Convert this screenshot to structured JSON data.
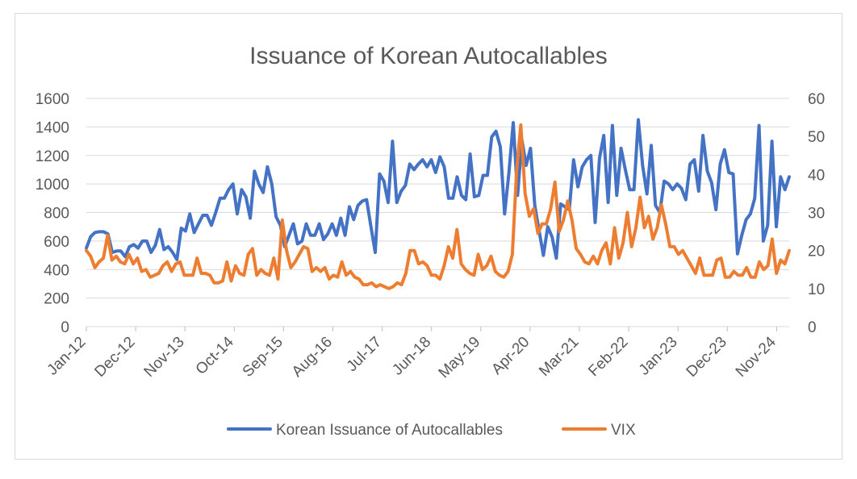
{
  "chart_data": {
    "type": "line",
    "title": "Issuance of Korean Autocallables",
    "xlabel": "",
    "ylabel_left": "",
    "ylabel_right": "",
    "x_tick_labels": [
      "Jan-12",
      "Dec-12",
      "Nov-13",
      "Oct-14",
      "Sep-15",
      "Aug-16",
      "Jul-17",
      "Jun-18",
      "May-19",
      "Apr-20",
      "Mar-21",
      "Feb-22",
      "Jan-23",
      "Dec-23",
      "Nov-24"
    ],
    "y_left": {
      "ticks": [
        "0",
        "200",
        "400",
        "600",
        "800",
        "1000",
        "1200",
        "1400",
        "1600"
      ],
      "range": [
        0,
        1600
      ]
    },
    "y_right": {
      "ticks": [
        "0",
        "10",
        "20",
        "30",
        "40",
        "50",
        "60"
      ],
      "range": [
        0,
        60
      ]
    },
    "grid": "horizontal",
    "legend_position": "bottom",
    "series": [
      {
        "name": "Korean Issuance of Autocallables",
        "axis": "left",
        "color": "#4472C4",
        "values": [
          550,
          630,
          660,
          665,
          665,
          650,
          520,
          530,
          530,
          490,
          560,
          575,
          550,
          600,
          600,
          520,
          570,
          680,
          540,
          560,
          520,
          470,
          690,
          670,
          790,
          660,
          720,
          780,
          780,
          710,
          800,
          900,
          900,
          960,
          1000,
          790,
          960,
          910,
          760,
          1090,
          1000,
          940,
          1120,
          1000,
          770,
          710,
          560,
          640,
          720,
          580,
          600,
          720,
          640,
          640,
          720,
          610,
          650,
          720,
          640,
          760,
          640,
          840,
          750,
          850,
          880,
          890,
          700,
          520,
          1070,
          1020,
          870,
          1300,
          870,
          950,
          990,
          1140,
          1100,
          1140,
          1170,
          1120,
          1170,
          1080,
          1190,
          1120,
          900,
          900,
          1050,
          920,
          890,
          1210,
          910,
          920,
          1060,
          1060,
          1330,
          1370,
          1260,
          790,
          1080,
          1430,
          920,
          1310,
          1130,
          1250,
          850,
          670,
          500,
          700,
          630,
          480,
          860,
          840,
          820,
          1170,
          980,
          1120,
          1170,
          1200,
          730,
          1180,
          1340,
          870,
          1410,
          920,
          1250,
          1100,
          960,
          960,
          1450,
          1130,
          930,
          1270,
          850,
          800,
          1020,
          1000,
          960,
          1000,
          970,
          890,
          1140,
          1170,
          950,
          1340,
          1090,
          1010,
          820,
          1140,
          1240,
          1080,
          1070,
          510,
          640,
          750,
          790,
          900,
          1410,
          600,
          710,
          1300,
          700,
          1050,
          960,
          1050
        ]
      },
      {
        "name": "VIX",
        "axis": "right",
        "color": "#ED7D31",
        "values": [
          20,
          18.5,
          15.5,
          17,
          18,
          24,
          17.5,
          18.5,
          17,
          16.5,
          19,
          16.5,
          18,
          14.5,
          15,
          13,
          13.5,
          14,
          16,
          17,
          14.5,
          16.5,
          17,
          13.5,
          13.5,
          13.5,
          18,
          14,
          14,
          13.5,
          11.5,
          11.5,
          12,
          17,
          12,
          16,
          14,
          13.5,
          19,
          20.5,
          13.5,
          15,
          14,
          13.5,
          18,
          12.5,
          28,
          20,
          15.5,
          17,
          19,
          21,
          20.5,
          14.5,
          15.5,
          14.5,
          15.5,
          12.5,
          13.5,
          13,
          17,
          13.5,
          14.5,
          13,
          12.5,
          11,
          11,
          11.5,
          10.5,
          11,
          10.5,
          10,
          10.5,
          11.5,
          11,
          14,
          20,
          20,
          16.5,
          17,
          16,
          13.5,
          13.5,
          12.5,
          16,
          21,
          18,
          25.5,
          16.5,
          15,
          14,
          13.5,
          19,
          15,
          16,
          18.5,
          14.5,
          13.5,
          13,
          14.5,
          19,
          41,
          53,
          35,
          29,
          31,
          24.5,
          27,
          27,
          31,
          38,
          25,
          28,
          33,
          28,
          20.5,
          19,
          17,
          16.5,
          18.5,
          16.5,
          20,
          22,
          16.5,
          26,
          18,
          22,
          30,
          21,
          26,
          34,
          26,
          29,
          23,
          26,
          32,
          27,
          21,
          21,
          19,
          20,
          18,
          16,
          14,
          18,
          13.5,
          13.5,
          13.5,
          17.5,
          18,
          13,
          13,
          14.5,
          13.5,
          13.5,
          15.5,
          13,
          13,
          17,
          15,
          16,
          23,
          14,
          17.5,
          16.5,
          20
        ]
      }
    ],
    "legend": [
      "Korean Issuance of Autocallables",
      "VIX"
    ]
  }
}
